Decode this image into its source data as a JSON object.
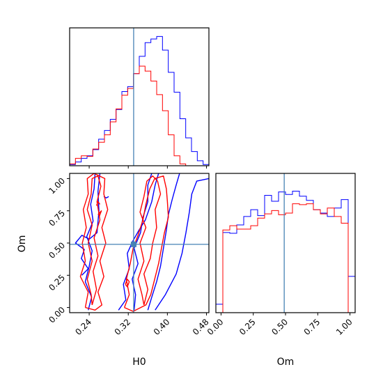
{
  "chart_data": {
    "type": "corner",
    "parameters": [
      "H0",
      "Om"
    ],
    "truth": {
      "H0": 0.331,
      "Om": 0.49
    },
    "truth_color": "#4682b4",
    "series_colors": {
      "a": "#0000ff",
      "b": "#ff0000"
    },
    "axes": {
      "H0": {
        "label": "H0",
        "range": [
          0.2,
          0.485
        ],
        "ticks": [
          0.24,
          0.32,
          0.4,
          0.48
        ],
        "tick_labels": [
          "0.24",
          "0.32",
          "0.40",
          "0.48"
        ]
      },
      "Om": {
        "label": "Om",
        "range": [
          -0.04,
          1.04
        ],
        "ticks": [
          0.0,
          0.25,
          0.5,
          0.75,
          1.0
        ],
        "tick_labels": [
          "0.00",
          "0.25",
          "0.50",
          "0.75",
          "1.00"
        ]
      }
    },
    "hist_H0": {
      "x_range": [
        0.2,
        0.485
      ],
      "bins": 24,
      "series": [
        {
          "color": "#0000ff",
          "counts": [
            0.2,
            0.6,
            1.2,
            1.6,
            2.6,
            4.3,
            5.7,
            7.5,
            9.1,
            12.0,
            12.8,
            14.9,
            17.7,
            19.9,
            20.5,
            20.9,
            18.7,
            15.1,
            11.9,
            7.6,
            4.5,
            2.3,
            0.8,
            0.2
          ]
        },
        {
          "color": "#ff0000",
          "counts": [
            0.3,
            1.2,
            1.6,
            1.5,
            2.7,
            3.8,
            5.0,
            7.1,
            9.2,
            11.4,
            12.5,
            14.9,
            16.1,
            15.3,
            13.7,
            11.5,
            8.9,
            5.0,
            1.6,
            0.3,
            0.0,
            0.0,
            0.0,
            0.0
          ]
        }
      ]
    },
    "hist_Om": {
      "x_range": [
        -0.04,
        1.04
      ],
      "bins": 20,
      "series": [
        {
          "color": "#0000ff",
          "counts": [
            1.0,
            9.5,
            9.4,
            10.4,
            11.4,
            12.2,
            11.5,
            13.9,
            13.2,
            14.3,
            14.0,
            14.4,
            13.8,
            13.3,
            12.2,
            11.8,
            11.4,
            12.4,
            13.4,
            4.3
          ]
        },
        {
          "color": "#ff0000",
          "counts": [
            0.0,
            9.8,
            10.3,
            9.9,
            9.9,
            10.3,
            11.2,
            11.7,
            12.1,
            11.6,
            11.8,
            12.9,
            12.8,
            12.9,
            12.2,
            11.7,
            12.4,
            11.4,
            10.6,
            0.0
          ]
        }
      ]
    },
    "contours": {
      "series": [
        {
          "color": "#0000ff",
          "paths": [
            [
              [
                0.332,
                -0.02
              ],
              [
                0.335,
                0.1
              ],
              [
                0.328,
                0.22
              ],
              [
                0.34,
                0.34
              ],
              [
                0.332,
                0.46
              ],
              [
                0.345,
                0.58
              ],
              [
                0.35,
                0.7
              ],
              [
                0.36,
                0.82
              ],
              [
                0.36,
                0.95
              ],
              [
                0.368,
                1.04
              ]
            ],
            [
              [
                0.238,
                -0.02
              ],
              [
                0.245,
                0.08
              ],
              [
                0.232,
                0.2
              ],
              [
                0.24,
                0.32
              ],
              [
                0.246,
                0.44
              ],
              [
                0.235,
                0.55
              ],
              [
                0.248,
                0.67
              ],
              [
                0.243,
                0.8
              ],
              [
                0.25,
                0.92
              ],
              [
                0.252,
                1.04
              ]
            ],
            [
              [
                0.3,
                -0.02
              ],
              [
                0.315,
                0.06
              ],
              [
                0.31,
                0.18
              ],
              [
                0.322,
                0.3
              ],
              [
                0.318,
                0.42
              ],
              [
                0.33,
                0.52
              ],
              [
                0.342,
                0.6
              ],
              [
                0.355,
                0.68
              ],
              [
                0.368,
                0.82
              ],
              [
                0.375,
                0.95
              ],
              [
                0.382,
                1.04
              ]
            ],
            [
              [
                0.36,
                -0.02
              ],
              [
                0.368,
                0.08
              ],
              [
                0.378,
                0.2
              ],
              [
                0.386,
                0.32
              ],
              [
                0.392,
                0.46
              ],
              [
                0.398,
                0.6
              ],
              [
                0.402,
                0.72
              ],
              [
                0.41,
                0.84
              ],
              [
                0.418,
                0.95
              ],
              [
                0.425,
                1.04
              ]
            ],
            [
              [
                0.375,
                -0.02
              ],
              [
                0.396,
                0.1
              ],
              [
                0.418,
                0.26
              ],
              [
                0.43,
                0.42
              ],
              [
                0.438,
                0.58
              ],
              [
                0.445,
                0.74
              ],
              [
                0.45,
                0.88
              ],
              [
                0.46,
                0.98
              ],
              [
                0.485,
                1.0
              ]
            ],
            [
              [
                0.225,
                0.25
              ],
              [
                0.238,
                0.3
              ],
              [
                0.224,
                0.38
              ],
              [
                0.23,
                0.45
              ],
              [
                0.212,
                0.5
              ],
              [
                0.225,
                0.56
              ],
              [
                0.24,
                0.53
              ],
              [
                0.256,
                0.58
              ],
              [
                0.26,
                0.75
              ],
              [
                0.258,
                0.9
              ],
              [
                0.262,
                1.04
              ]
            ],
            [
              [
                0.27,
                0.86
              ],
              [
                0.275,
                0.85
              ],
              [
                0.28,
                0.86
              ]
            ]
          ]
        },
        {
          "color": "#ff0000",
          "paths": [
            [
              [
                0.352,
                0.02
              ],
              [
                0.36,
                0.14
              ],
              [
                0.352,
                0.26
              ],
              [
                0.365,
                0.38
              ],
              [
                0.37,
                0.5
              ],
              [
                0.378,
                0.62
              ],
              [
                0.375,
                0.76
              ],
              [
                0.386,
                0.88
              ],
              [
                0.38,
                0.98
              ],
              [
                0.37,
                1.02
              ],
              [
                0.358,
                0.98
              ],
              [
                0.352,
                0.86
              ],
              [
                0.344,
                0.74
              ],
              [
                0.356,
                0.62
              ],
              [
                0.344,
                0.5
              ],
              [
                0.352,
                0.36
              ],
              [
                0.34,
                0.22
              ],
              [
                0.348,
                0.1
              ],
              [
                0.352,
                0.02
              ]
            ],
            [
              [
                0.246,
                0.02
              ],
              [
                0.255,
                0.14
              ],
              [
                0.248,
                0.28
              ],
              [
                0.258,
                0.4
              ],
              [
                0.25,
                0.54
              ],
              [
                0.262,
                0.68
              ],
              [
                0.256,
                0.82
              ],
              [
                0.264,
                0.94
              ],
              [
                0.258,
                1.02
              ],
              [
                0.246,
                1.0
              ],
              [
                0.244,
                0.88
              ],
              [
                0.236,
                0.76
              ],
              [
                0.246,
                0.64
              ],
              [
                0.238,
                0.5
              ],
              [
                0.246,
                0.36
              ],
              [
                0.236,
                0.22
              ],
              [
                0.244,
                0.1
              ],
              [
                0.246,
                0.02
              ]
            ],
            [
              [
                0.232,
                0.0
              ],
              [
                0.238,
                0.12
              ],
              [
                0.222,
                0.24
              ],
              [
                0.232,
                0.36
              ],
              [
                0.226,
                0.5
              ],
              [
                0.234,
                0.62
              ],
              [
                0.228,
                0.76
              ],
              [
                0.238,
                0.88
              ],
              [
                0.236,
                1.0
              ],
              [
                0.25,
                1.04
              ],
              [
                0.272,
                1.0
              ],
              [
                0.27,
                0.88
              ],
              [
                0.278,
                0.76
              ],
              [
                0.266,
                0.62
              ],
              [
                0.274,
                0.5
              ],
              [
                0.262,
                0.36
              ],
              [
                0.27,
                0.24
              ],
              [
                0.258,
                0.12
              ],
              [
                0.266,
                0.02
              ],
              [
                0.252,
                -0.02
              ],
              [
                0.232,
                0.0
              ]
            ],
            [
              [
                0.312,
                0.0
              ],
              [
                0.322,
                0.1
              ],
              [
                0.316,
                0.22
              ],
              [
                0.324,
                0.34
              ],
              [
                0.33,
                0.46
              ],
              [
                0.34,
                0.56
              ],
              [
                0.35,
                0.68
              ],
              [
                0.356,
                0.8
              ],
              [
                0.364,
                0.92
              ],
              [
                0.374,
                1.0
              ],
              [
                0.392,
                1.02
              ],
              [
                0.398,
                0.92
              ],
              [
                0.4,
                0.82
              ],
              [
                0.402,
                0.7
              ],
              [
                0.394,
                0.58
              ],
              [
                0.388,
                0.46
              ],
              [
                0.382,
                0.34
              ],
              [
                0.374,
                0.22
              ],
              [
                0.366,
                0.1
              ],
              [
                0.356,
                0.02
              ],
              [
                0.33,
                -0.03
              ],
              [
                0.312,
                0.0
              ]
            ],
            [
              [
                0.314,
                0.18
              ],
              [
                0.318,
                0.22
              ],
              [
                0.322,
                0.2
              ],
              [
                0.318,
                0.16
              ],
              [
                0.314,
                0.18
              ]
            ],
            [
              [
                0.255,
                0.79
              ],
              [
                0.258,
                0.82
              ],
              [
                0.262,
                0.8
              ]
            ],
            [
              [
                0.258,
                0.72
              ],
              [
                0.265,
                0.75
              ],
              [
                0.26,
                0.7
              ]
            ]
          ]
        }
      ]
    },
    "truth_marker": {
      "H0": 0.331,
      "Om": 0.49
    }
  }
}
